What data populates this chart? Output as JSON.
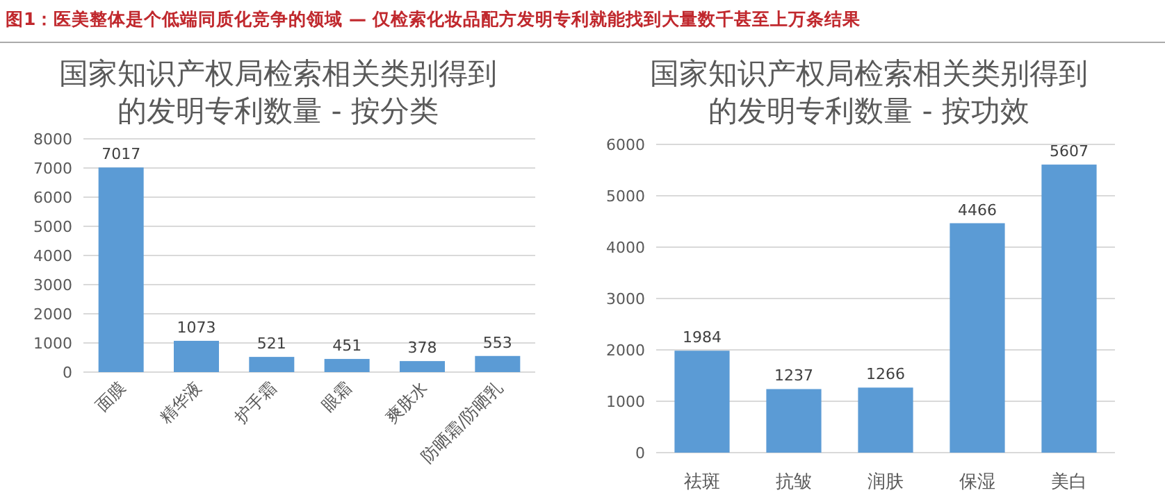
{
  "chart_data": [
    {
      "type": "bar",
      "title": "国家知识产权局检索相关类别得到的发明专利数量 - 按分类",
      "annotations": [
        "图1：医美整体是个低端同质化竞争的领域 — 仅检索化妆品配方发明专利就能找到大量数千甚至上万条结果"
      ],
      "categories": [
        "面膜",
        "精华液",
        "护手霜",
        "眼霜",
        "爽肤水",
        "防晒霜/防晒乳"
      ],
      "values": [
        7017,
        1073,
        521,
        451,
        378,
        553
      ],
      "color": "#5b9bd5",
      "ylim": [
        0,
        8000
      ],
      "yticks": [
        0,
        1000,
        2000,
        3000,
        4000,
        5000,
        6000,
        7000,
        8000
      ],
      "grid": "y",
      "data_labels": true
    },
    {
      "type": "bar",
      "title": "国家知识产权局检索相关类别得到的发明专利数量 - 按功效",
      "categories": [
        "祛斑",
        "抗皱",
        "润肤",
        "保湿",
        "美白"
      ],
      "values": [
        1984,
        1237,
        1266,
        4466,
        5607
      ],
      "color": "#5b9bd5",
      "ylim": [
        0,
        6000
      ],
      "yticks": [
        0,
        1000,
        2000,
        3000,
        4000,
        5000,
        6000
      ],
      "grid": "y",
      "data_labels": true
    }
  ]
}
